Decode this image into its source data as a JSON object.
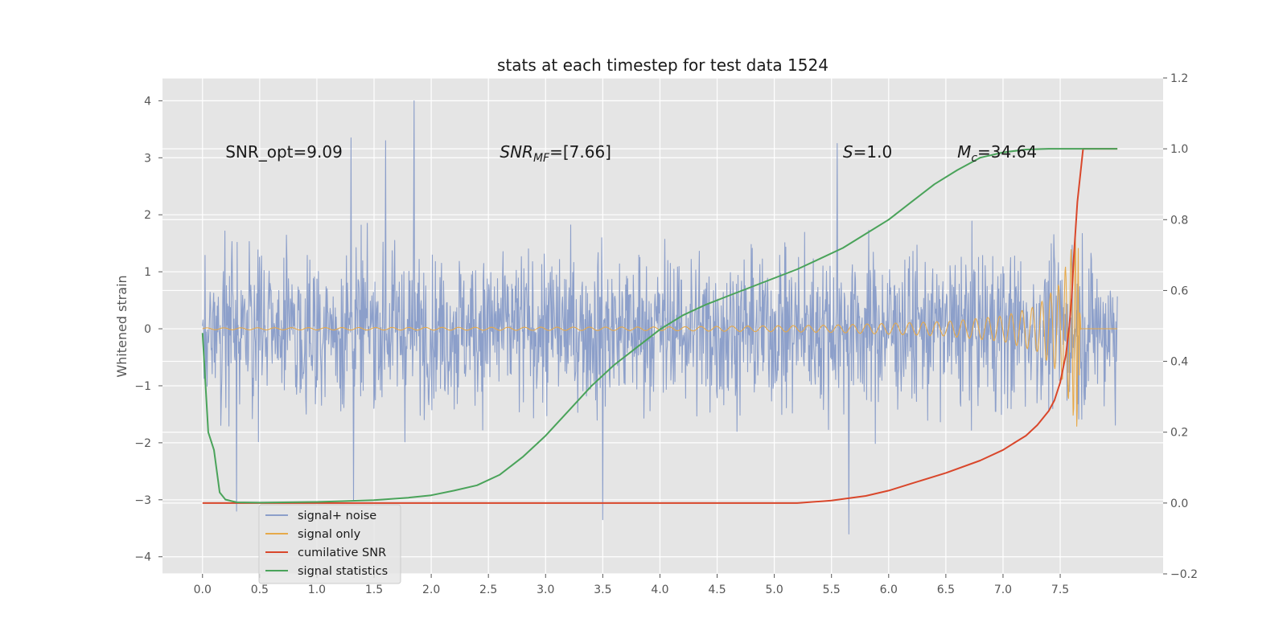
{
  "chart_data": {
    "type": "line",
    "title": "stats at each timestep for test data 1524",
    "xlabel": "",
    "ylabel": "Whitened strain",
    "ylabel_right": "",
    "grid": true,
    "xlim": [
      -0.35,
      8.4
    ],
    "ylim": [
      -4.3,
      4.4
    ],
    "ylim_right": [
      -0.2,
      1.2
    ],
    "x_ticks": [
      "0.0",
      "0.5",
      "1.0",
      "1.5",
      "2.0",
      "2.5",
      "3.0",
      "3.5",
      "4.0",
      "4.5",
      "5.0",
      "5.5",
      "6.0",
      "6.5",
      "7.0",
      "7.5"
    ],
    "y_ticks": [
      "−4",
      "−3",
      "−2",
      "−1",
      "0",
      "1",
      "2",
      "3",
      "4"
    ],
    "y_ticks_right": [
      "−0.2",
      "0.0",
      "0.2",
      "0.4",
      "0.6",
      "0.8",
      "1.0",
      "1.2"
    ],
    "annotations": [
      {
        "text": "SNR_opt=9.09",
        "x": 0.2,
        "y": 3.1
      },
      {
        "text": "SNR_MF=[7.66]",
        "x": 2.6,
        "y": 3.1
      },
      {
        "text": "S=1.0",
        "x": 5.6,
        "y": 3.1
      },
      {
        "text": "M_c=34.64",
        "x": 6.6,
        "y": 3.1
      }
    ],
    "legend": {
      "placement": "lower-left",
      "entries": [
        "signal+ noise",
        "signal only",
        "cumilative SNR",
        "signal statistics"
      ]
    },
    "series": [
      {
        "name": "signal+ noise",
        "axis": "left",
        "color": "#8c9fca",
        "kind": "noise",
        "x_range": [
          0,
          8.0
        ],
        "envelope": [
          -3.6,
          4.0
        ],
        "x": [
          1.3,
          1.32,
          1.85,
          1.6,
          5.55,
          5.65,
          3.5,
          0.3
        ],
        "y": [
          3.35,
          -3.0,
          4.0,
          3.3,
          3.25,
          -3.6,
          -3.35,
          -3.2
        ]
      },
      {
        "name": "signal only",
        "axis": "left",
        "color": "#e6a94a",
        "kind": "chirp",
        "x": [
          0.0,
          4.0,
          5.5,
          6.5,
          7.0,
          7.3,
          7.5,
          7.6,
          7.65,
          7.68,
          8.0
        ],
        "y": [
          0.01,
          0.02,
          0.04,
          0.08,
          0.14,
          0.25,
          0.5,
          0.9,
          1.2,
          0.0,
          0.0
        ]
      },
      {
        "name": "cumilative SNR",
        "axis": "right",
        "color": "#d9472b",
        "x": [
          0.0,
          1.0,
          3.0,
          5.2,
          5.5,
          5.8,
          6.0,
          6.2,
          6.5,
          6.8,
          7.0,
          7.1,
          7.2,
          7.3,
          7.4,
          7.45,
          7.5,
          7.55,
          7.58,
          7.6,
          7.62,
          7.65,
          7.7,
          8.0
        ],
        "y": [
          0.0,
          0.0,
          0.0,
          0.0,
          0.007,
          0.02,
          0.035,
          0.055,
          0.085,
          0.12,
          0.15,
          0.17,
          0.19,
          0.22,
          0.26,
          0.29,
          0.34,
          0.42,
          0.5,
          0.58,
          0.7,
          0.85,
          1.0,
          1.0
        ]
      },
      {
        "name": "signal statistics",
        "axis": "right",
        "color": "#4aa35a",
        "x": [
          0.0,
          0.05,
          0.1,
          0.15,
          0.2,
          0.3,
          0.5,
          1.0,
          1.5,
          1.8,
          2.0,
          2.2,
          2.4,
          2.6,
          2.8,
          3.0,
          3.2,
          3.4,
          3.6,
          3.8,
          4.0,
          4.2,
          4.4,
          4.6,
          4.8,
          5.0,
          5.2,
          5.4,
          5.6,
          5.8,
          6.0,
          6.2,
          6.4,
          6.6,
          6.8,
          7.0,
          7.2,
          7.4,
          7.6,
          8.0
        ],
        "y": [
          0.48,
          0.2,
          0.15,
          0.03,
          0.01,
          0.002,
          0.001,
          0.003,
          0.008,
          0.015,
          0.022,
          0.035,
          0.05,
          0.08,
          0.13,
          0.19,
          0.26,
          0.33,
          0.39,
          0.44,
          0.49,
          0.53,
          0.56,
          0.585,
          0.61,
          0.635,
          0.66,
          0.69,
          0.72,
          0.76,
          0.8,
          0.85,
          0.9,
          0.94,
          0.975,
          0.99,
          0.998,
          1.0,
          1.0,
          1.0
        ]
      }
    ]
  }
}
